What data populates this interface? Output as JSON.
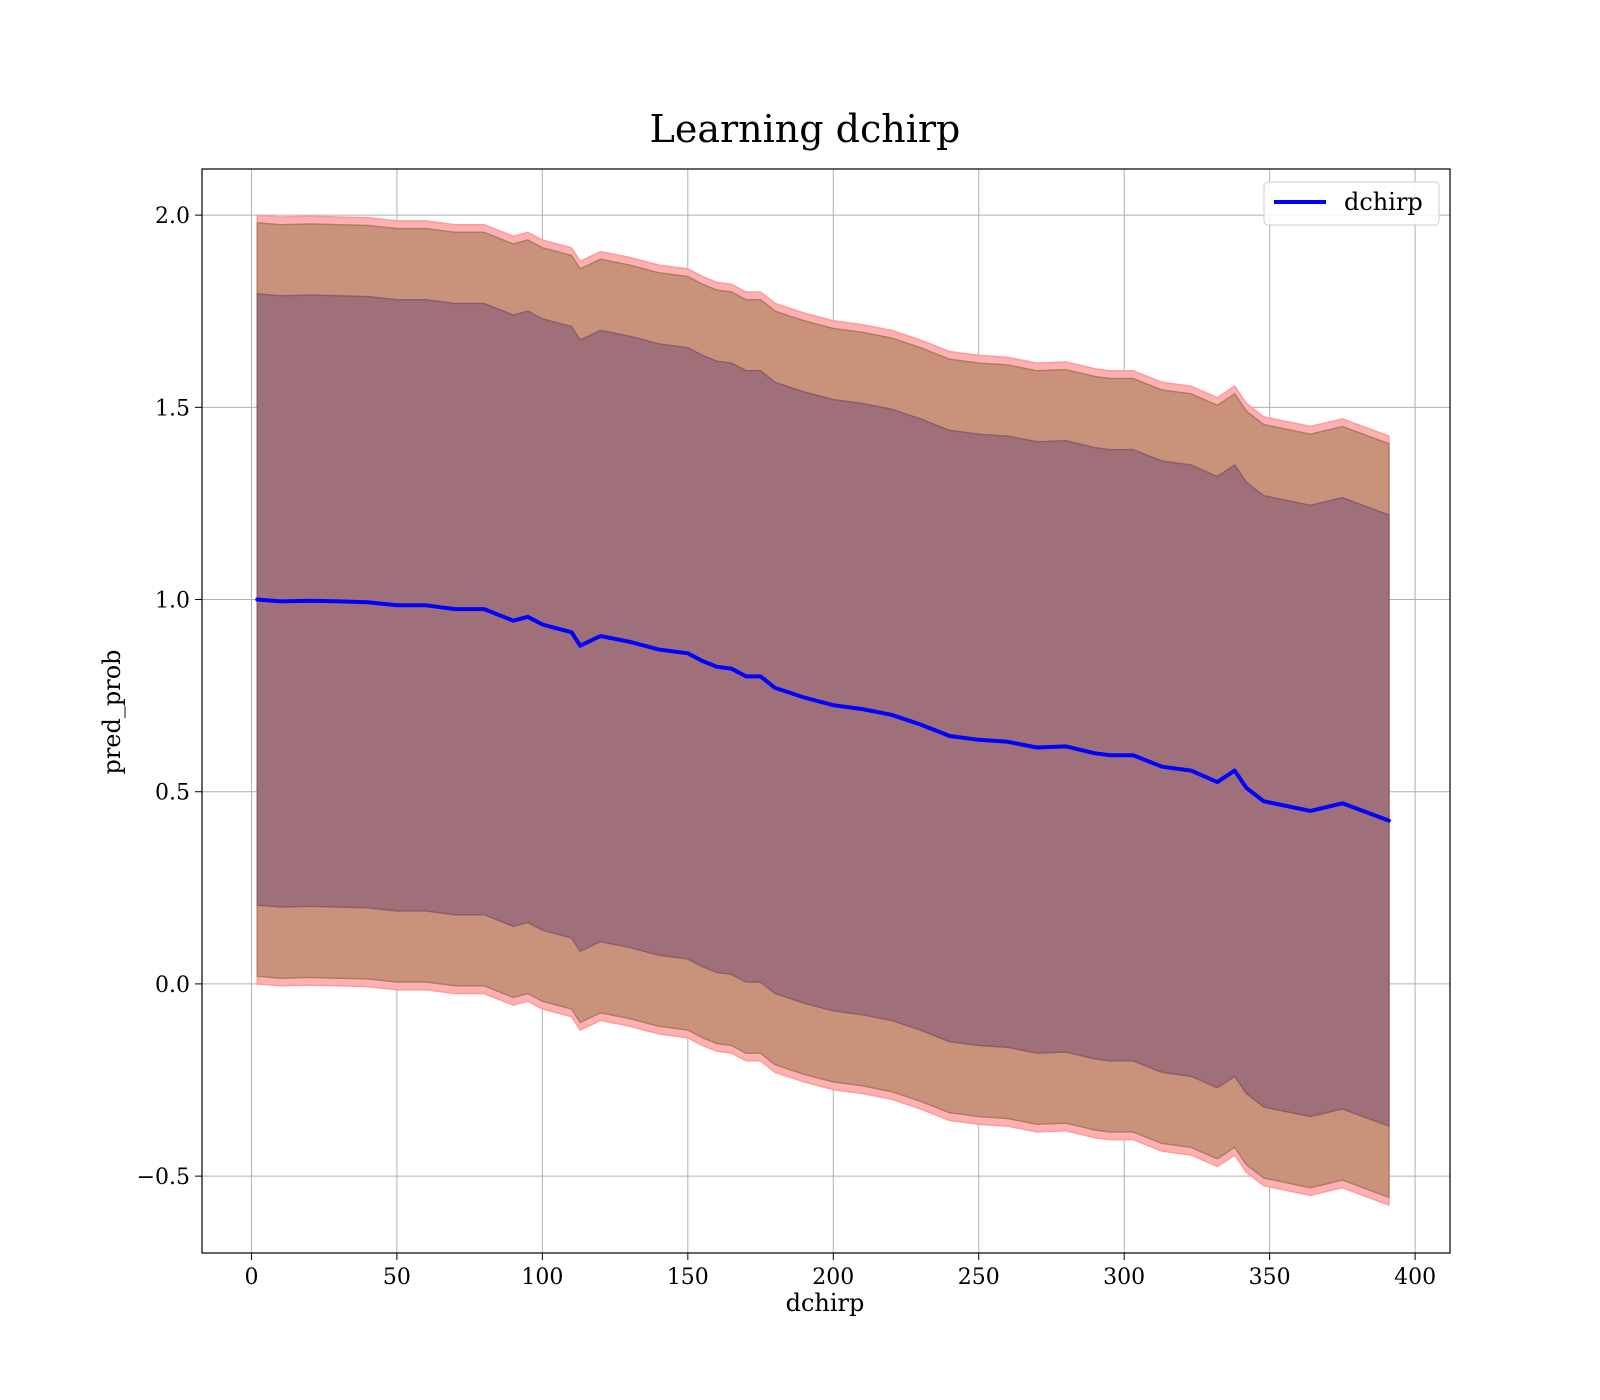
{
  "chart_data": {
    "type": "line",
    "title": "Learning dchirp",
    "xlabel": "dchirp",
    "ylabel": "pred_prob",
    "xlim": [
      -17,
      412
    ],
    "ylim": [
      -0.7,
      2.12
    ],
    "xticks": [
      0,
      50,
      100,
      150,
      200,
      250,
      300,
      350,
      400
    ],
    "xtick_labels": [
      "0",
      "50",
      "100",
      "150",
      "200",
      "250",
      "300",
      "350",
      "400"
    ],
    "yticks": [
      -0.5,
      0.0,
      0.5,
      1.0,
      1.5,
      2.0
    ],
    "ytick_labels": [
      "−0.5",
      "0.0",
      "0.5",
      "1.0",
      "1.5",
      "2.0"
    ],
    "grid": true,
    "legend_position": "top-right",
    "series": [
      {
        "name": "dchirp",
        "color": "#0000ff",
        "x": [
          2,
          10,
          20,
          30,
          40,
          50,
          60,
          70,
          80,
          90,
          95,
          100,
          105,
          110,
          113,
          120,
          130,
          140,
          150,
          155,
          160,
          165,
          170,
          175,
          180,
          190,
          200,
          210,
          220,
          230,
          240,
          250,
          260,
          270,
          280,
          290,
          295,
          303,
          313,
          323,
          332,
          338,
          342,
          348,
          364,
          375,
          391
        ],
        "y": [
          1.0,
          0.995,
          0.997,
          0.995,
          0.993,
          0.985,
          0.985,
          0.975,
          0.975,
          0.945,
          0.955,
          0.935,
          0.925,
          0.915,
          0.88,
          0.905,
          0.89,
          0.87,
          0.86,
          0.84,
          0.825,
          0.82,
          0.8,
          0.8,
          0.77,
          0.745,
          0.725,
          0.715,
          0.7,
          0.675,
          0.645,
          0.635,
          0.63,
          0.615,
          0.618,
          0.6,
          0.595,
          0.595,
          0.565,
          0.555,
          0.525,
          0.555,
          0.51,
          0.475,
          0.45,
          0.47,
          0.425
        ]
      }
    ],
    "bands": [
      {
        "role": "outer",
        "upper_offset": 1.0,
        "lower_offset": -1.0,
        "fill": "#ffb0b0",
        "edge": "#ff9a9a"
      },
      {
        "role": "middle",
        "upper_offset": 0.98,
        "lower_offset": -0.98,
        "fill": "#c8937a",
        "edge": "#b07a66"
      },
      {
        "role": "inner",
        "upper_offset": 0.795,
        "lower_offset": -0.795,
        "fill": "#a0707a",
        "edge": "#8a5f6c"
      }
    ]
  }
}
